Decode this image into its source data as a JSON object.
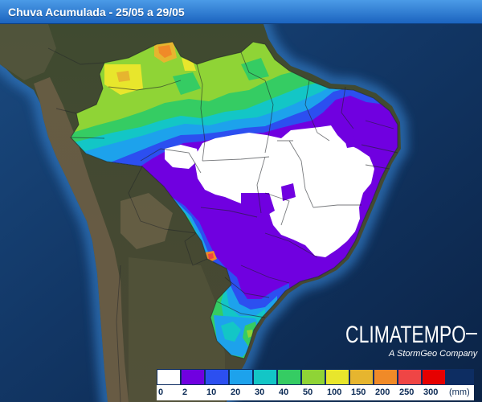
{
  "title": "Chuva Acumulada - 25/05 a 29/05",
  "logo": {
    "brand": "CLIMATEMPO",
    "tagline": "A StormGeo Company"
  },
  "legend": {
    "unit": "(mm)",
    "classes": [
      {
        "label": "0",
        "color": "#ffffff"
      },
      {
        "label": "2",
        "color": "#7000e0"
      },
      {
        "label": "10",
        "color": "#2c4ff0"
      },
      {
        "label": "20",
        "color": "#1da2ec"
      },
      {
        "label": "30",
        "color": "#13c6c6"
      },
      {
        "label": "40",
        "color": "#35cc63"
      },
      {
        "label": "50",
        "color": "#8fd436"
      },
      {
        "label": "100",
        "color": "#e8e62c"
      },
      {
        "label": "150",
        "color": "#e6b52f"
      },
      {
        "label": "200",
        "color": "#f08a28"
      },
      {
        "label": "250",
        "color": "#ef4545"
      },
      {
        "label": "300",
        "color": "#e60000"
      }
    ]
  }
}
